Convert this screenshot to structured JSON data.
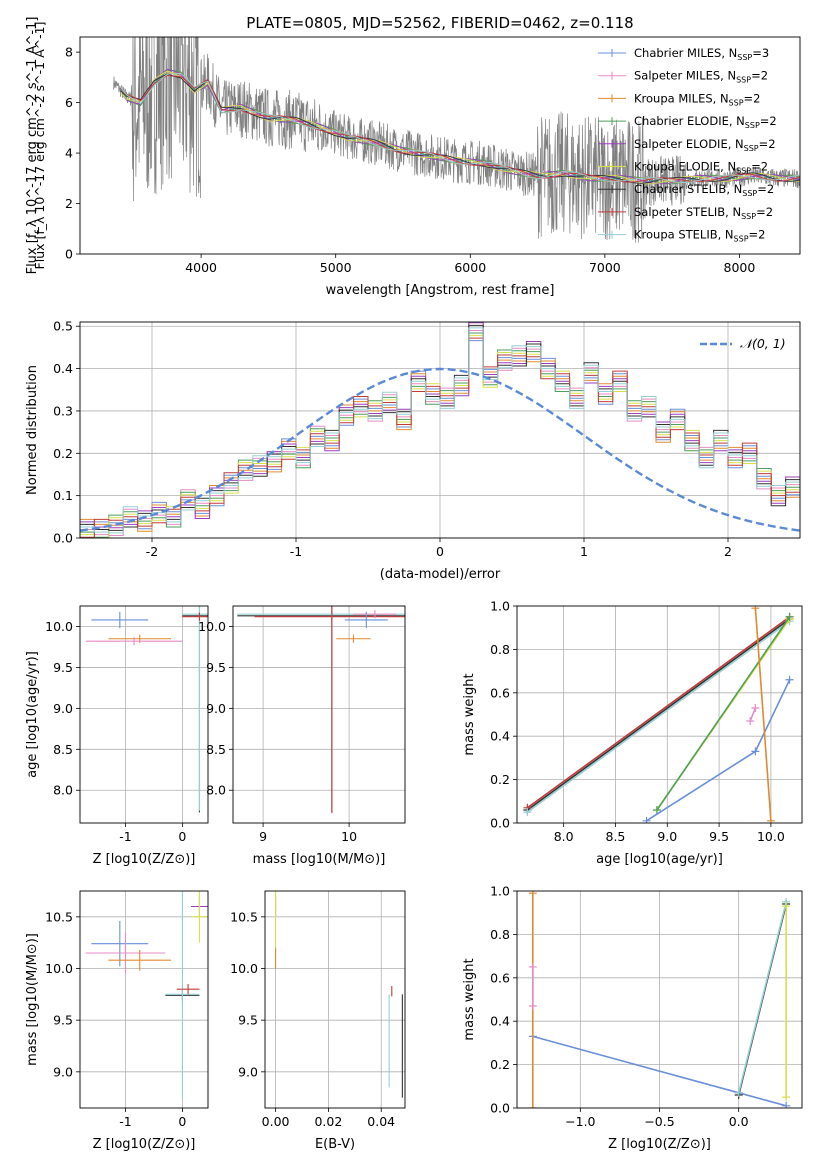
{
  "figure_title": "PLATE=0805, MJD=52562, FIBERID=0462, z=0.118",
  "colors": {
    "chabrier_miles": "#6a8fd8",
    "salpeter_miles": "#e58cc4",
    "kroupa_miles": "#e08a2e",
    "chabrier_elodie": "#4f9e5a",
    "salpeter_elodie": "#9b3fc0",
    "kroupa_elodie": "#d7e04a",
    "chabrier_stelib": "#333333",
    "salpeter_stelib": "#c23b3b",
    "kroupa_stelib": "#93cfd4",
    "data": "#808080",
    "grid": "#b0b0b0"
  },
  "legend": [
    {
      "name": "Chabrier MILES",
      "nssp": "3",
      "key": "chabrier_miles"
    },
    {
      "name": "Salpeter MILES",
      "nssp": "2",
      "key": "salpeter_miles"
    },
    {
      "name": "Kroupa MILES",
      "nssp": "2",
      "key": "kroupa_miles"
    },
    {
      "name": "Chabrier ELODIE",
      "nssp": "2",
      "key": "chabrier_elodie"
    },
    {
      "name": "Salpeter ELODIE",
      "nssp": "2",
      "key": "salpeter_elodie"
    },
    {
      "name": "Kroupa ELODIE",
      "nssp": "2",
      "key": "kroupa_elodie"
    },
    {
      "name": "Chabrier STELIB",
      "nssp": "2",
      "key": "chabrier_stelib"
    },
    {
      "name": "Salpeter STELIB",
      "nssp": "2",
      "key": "salpeter_stelib"
    },
    {
      "name": "Kroupa STELIB",
      "nssp": "2",
      "key": "kroupa_stelib"
    }
  ],
  "chart_data": [
    {
      "id": "spectrum",
      "type": "line",
      "xlabel": "wavelength [Angstrom, rest frame]",
      "ylabel": "Flux [f_λ 10^-17 erg cm^-2 s^-1 A^-1]",
      "xlim": [
        3100,
        8450
      ],
      "ylim": [
        0,
        8.6
      ],
      "xticks": [
        4000,
        5000,
        6000,
        7000,
        8000
      ],
      "yticks": [
        0,
        2,
        4,
        6,
        8
      ],
      "legend_position": "top-right",
      "grid": false,
      "model_continuum": {
        "x": [
          3350,
          3450,
          3550,
          3650,
          3750,
          3850,
          3950,
          4050,
          4150,
          4300,
          4500,
          4700,
          4900,
          5100,
          5300,
          5500,
          5700,
          5900,
          6100,
          6300,
          6500,
          6700,
          6900,
          7100,
          7300,
          7500,
          7700,
          7900,
          8100,
          8300,
          8450
        ],
        "y": [
          6.8,
          6.2,
          6.0,
          6.8,
          7.2,
          7.1,
          6.5,
          6.8,
          5.7,
          5.8,
          5.4,
          5.3,
          5.0,
          4.6,
          4.4,
          4.1,
          3.9,
          3.7,
          3.6,
          3.3,
          3.1,
          3.2,
          3.0,
          3.0,
          2.9,
          2.9,
          3.0,
          3.0,
          3.1,
          3.0,
          3.0
        ]
      }
    },
    {
      "id": "residuals",
      "type": "area",
      "xlabel": "(data-model)/error",
      "ylabel": "Normed distribution",
      "xlim": [
        -2.5,
        2.5
      ],
      "ylim": [
        0,
        0.51
      ],
      "xticks": [
        -2,
        -1,
        0,
        1,
        2
      ],
      "yticks": [
        0.0,
        0.1,
        0.2,
        0.3,
        0.4,
        0.5
      ],
      "grid": true,
      "legend_position": "top-right",
      "reference": {
        "label": "𝒩(0, 1)",
        "mean": 0,
        "sigma": 1
      },
      "bin_width": 0.1,
      "bin_start": -2.5,
      "histogram": [
        0.02,
        0.02,
        0.03,
        0.05,
        0.04,
        0.06,
        0.05,
        0.09,
        0.07,
        0.1,
        0.13,
        0.16,
        0.17,
        0.18,
        0.21,
        0.19,
        0.24,
        0.23,
        0.29,
        0.31,
        0.3,
        0.32,
        0.28,
        0.37,
        0.34,
        0.33,
        0.36,
        0.49,
        0.38,
        0.42,
        0.43,
        0.44,
        0.4,
        0.37,
        0.33,
        0.39,
        0.34,
        0.37,
        0.3,
        0.31,
        0.25,
        0.28,
        0.23,
        0.19,
        0.23,
        0.19,
        0.2,
        0.14,
        0.1,
        0.12,
        0.09,
        0.1,
        0.07,
        0.08,
        0.06,
        0.05,
        0.05,
        0.04,
        0.04,
        0.03,
        0.04
      ]
    },
    {
      "id": "age_vs_Z",
      "type": "scatter",
      "xlabel": "Z [log10(Z/Z⊙)]",
      "ylabel": "age [log10(age/yr)]",
      "xlim": [
        -1.8,
        0.45
      ],
      "ylim": [
        7.6,
        10.25
      ],
      "xticks": [
        -1,
        0
      ],
      "yticks": [
        8.0,
        8.5,
        9.0,
        9.5,
        10.0
      ],
      "grid": true,
      "points": [
        {
          "key": "chabrier_miles",
          "x": -1.1,
          "y": 10.08,
          "xerr": 0.5,
          "yerr": 0.1
        },
        {
          "key": "kroupa_miles",
          "x": -0.75,
          "y": 9.85,
          "xerr": 0.55,
          "yerr": 0.05
        },
        {
          "key": "salpeter_miles",
          "x": -0.85,
          "y": 9.82,
          "xerr": 0.85,
          "yerr": 0.05
        },
        {
          "key": "chabrier_stelib",
          "x": 0.3,
          "y": 10.13,
          "xerr": 0.3,
          "yerr": 2.4
        },
        {
          "key": "kroupa_stelib",
          "x": 0.3,
          "y": 10.15,
          "xerr": 0.3,
          "yerr": 2.4
        },
        {
          "key": "salpeter_stelib",
          "x": 0.3,
          "y": 10.12,
          "xerr": 0.3,
          "yerr": 0.05
        }
      ]
    },
    {
      "id": "age_vs_mass",
      "type": "scatter",
      "xlabel": "mass [log10(M/M⊙)]",
      "ylabel": "",
      "xlim": [
        8.65,
        10.65
      ],
      "ylim": [
        7.6,
        10.25
      ],
      "xticks": [
        9,
        10
      ],
      "yticks": [
        8.0,
        8.5,
        9.0,
        9.5,
        10.0
      ],
      "grid": true,
      "points": [
        {
          "key": "chabrier_stelib",
          "x": 9.8,
          "y": 10.13,
          "xerr": 1.1,
          "yerr": 2.4
        },
        {
          "key": "kroupa_stelib",
          "x": 9.8,
          "y": 10.15,
          "xerr": 1.1,
          "yerr": 2.4
        },
        {
          "key": "salpeter_stelib",
          "x": 9.8,
          "y": 10.12,
          "xerr": 0.9,
          "yerr": 2.4
        },
        {
          "key": "chabrier_miles",
          "x": 10.2,
          "y": 10.08,
          "xerr": 0.25,
          "yerr": 0.1
        },
        {
          "key": "salpeter_miles",
          "x": 10.3,
          "y": 10.15,
          "xerr": 0.25,
          "yerr": 0.05
        },
        {
          "key": "kroupa_miles",
          "x": 10.05,
          "y": 9.85,
          "xerr": 0.2,
          "yerr": 0.05
        }
      ]
    },
    {
      "id": "weight_vs_age",
      "type": "line",
      "xlabel": "age [log10(age/yr)]",
      "ylabel": "mass weight",
      "xlim": [
        7.55,
        10.3
      ],
      "ylim": [
        0,
        1.0
      ],
      "xticks": [
        8.0,
        8.5,
        9.0,
        9.5,
        10.0
      ],
      "yticks": [
        0.0,
        0.2,
        0.4,
        0.6,
        0.8,
        1.0
      ],
      "grid": true,
      "lines": [
        {
          "key": "chabrier_stelib",
          "x": [
            7.65,
            10.18
          ],
          "y": [
            0.06,
            0.94
          ]
        },
        {
          "key": "salpeter_stelib",
          "x": [
            7.65,
            10.18
          ],
          "y": [
            0.07,
            0.95
          ]
        },
        {
          "key": "kroupa_stelib",
          "x": [
            7.65,
            10.18
          ],
          "y": [
            0.05,
            0.93
          ]
        },
        {
          "key": "kroupa_elodie",
          "x": [
            8.9,
            10.18
          ],
          "y": [
            0.06,
            0.94
          ]
        },
        {
          "key": "chabrier_elodie",
          "x": [
            8.9,
            10.18
          ],
          "y": [
            0.06,
            0.95
          ]
        },
        {
          "key": "chabrier_miles",
          "x": [
            8.8,
            9.85,
            10.18
          ],
          "y": [
            0.01,
            0.33,
            0.66
          ]
        },
        {
          "key": "kroupa_miles",
          "x": [
            9.85,
            10.0
          ],
          "y": [
            0.99,
            0.01
          ]
        },
        {
          "key": "salpeter_miles",
          "x": [
            9.8,
            9.85
          ],
          "y": [
            0.47,
            0.53
          ]
        }
      ]
    },
    {
      "id": "mass_vs_Z",
      "type": "scatter",
      "xlabel": "Z [log10(Z/Z⊙)]",
      "ylabel": "mass [log10(M/M⊙)]",
      "xlim": [
        -1.8,
        0.45
      ],
      "ylim": [
        8.65,
        10.75
      ],
      "xticks": [
        -1,
        0
      ],
      "yticks": [
        9.0,
        9.5,
        10.0,
        10.5
      ],
      "grid": true,
      "points": [
        {
          "key": "chabrier_miles",
          "x": -1.1,
          "y": 10.24,
          "xerr": 0.5,
          "yerr": 0.22
        },
        {
          "key": "salpeter_miles",
          "x": -1.0,
          "y": 10.15,
          "xerr": 0.7,
          "yerr": 0.2
        },
        {
          "key": "kroupa_miles",
          "x": -0.75,
          "y": 10.08,
          "xerr": 0.55,
          "yerr": 0.1
        },
        {
          "key": "chabrier_stelib",
          "x": 0.0,
          "y": 9.74,
          "xerr": 0.3,
          "yerr": 0.05
        },
        {
          "key": "kroupa_stelib",
          "x": 0.0,
          "y": 9.75,
          "xerr": 0.3,
          "yerr": 1.0
        },
        {
          "key": "salpeter_stelib",
          "x": 0.1,
          "y": 9.8,
          "xerr": 0.2,
          "yerr": 0.05
        },
        {
          "key": "salpeter_elodie",
          "x": 0.3,
          "y": 10.6,
          "xerr": 0.15,
          "yerr": 0.1
        },
        {
          "key": "kroupa_elodie",
          "x": 0.3,
          "y": 10.5,
          "xerr": 0.15,
          "yerr": 0.25
        }
      ]
    },
    {
      "id": "mass_vs_ebv",
      "type": "scatter",
      "xlabel": "E(B-V)",
      "ylabel": "",
      "xlim": [
        -0.004,
        0.049
      ],
      "ylim": [
        8.65,
        10.75
      ],
      "xticks": [
        0.0,
        0.02,
        0.04
      ],
      "yticks": [
        9.0,
        9.5,
        10.0,
        10.5
      ],
      "grid": true,
      "points": [
        {
          "key": "salpeter_elodie",
          "x": 0.0,
          "y": 10.6,
          "xerr": 0,
          "yerr": 0.1
        },
        {
          "key": "kroupa_elodie",
          "x": 0.0,
          "y": 10.45,
          "xerr": 0,
          "yerr": 0.3
        },
        {
          "key": "kroupa_miles",
          "x": 0.0,
          "y": 10.1,
          "xerr": 0,
          "yerr": 0.1
        },
        {
          "key": "salpeter_stelib",
          "x": 0.044,
          "y": 9.78,
          "xerr": 0,
          "yerr": 0.05
        },
        {
          "key": "kroupa_stelib",
          "x": 0.043,
          "y": 9.3,
          "xerr": 0,
          "yerr": 0.45
        },
        {
          "key": "chabrier_stelib",
          "x": 0.048,
          "y": 9.25,
          "xerr": 0,
          "yerr": 0.5
        }
      ]
    },
    {
      "id": "weight_vs_Z",
      "type": "line",
      "xlabel": "Z [log10(Z/Z⊙)]",
      "ylabel": "mass weight",
      "xlim": [
        -1.4,
        0.4
      ],
      "ylim": [
        0,
        1.0
      ],
      "xticks": [
        -1.0,
        -0.5,
        0.0
      ],
      "yticks": [
        0.0,
        0.2,
        0.4,
        0.6,
        0.8,
        1.0
      ],
      "grid": true,
      "lines": [
        {
          "key": "chabrier_miles",
          "x": [
            -1.3,
            0.0,
            0.3
          ],
          "y": [
            0.33,
            0.07,
            0.01
          ]
        },
        {
          "key": "chabrier_stelib",
          "x": [
            0.0,
            0.3
          ],
          "y": [
            0.06,
            0.94
          ]
        },
        {
          "key": "kroupa_stelib",
          "x": [
            0.0,
            0.3
          ],
          "y": [
            0.07,
            0.95
          ]
        },
        {
          "key": "kroupa_elodie",
          "x": [
            0.3,
            0.3
          ],
          "y": [
            0.05,
            0.93
          ]
        },
        {
          "key": "kroupa_miles",
          "x": [
            -1.3,
            -1.3
          ],
          "y": [
            0.0,
            0.99
          ]
        },
        {
          "key": "salpeter_miles",
          "x": [
            -1.3,
            -1.3
          ],
          "y": [
            0.47,
            0.65
          ]
        }
      ]
    }
  ]
}
